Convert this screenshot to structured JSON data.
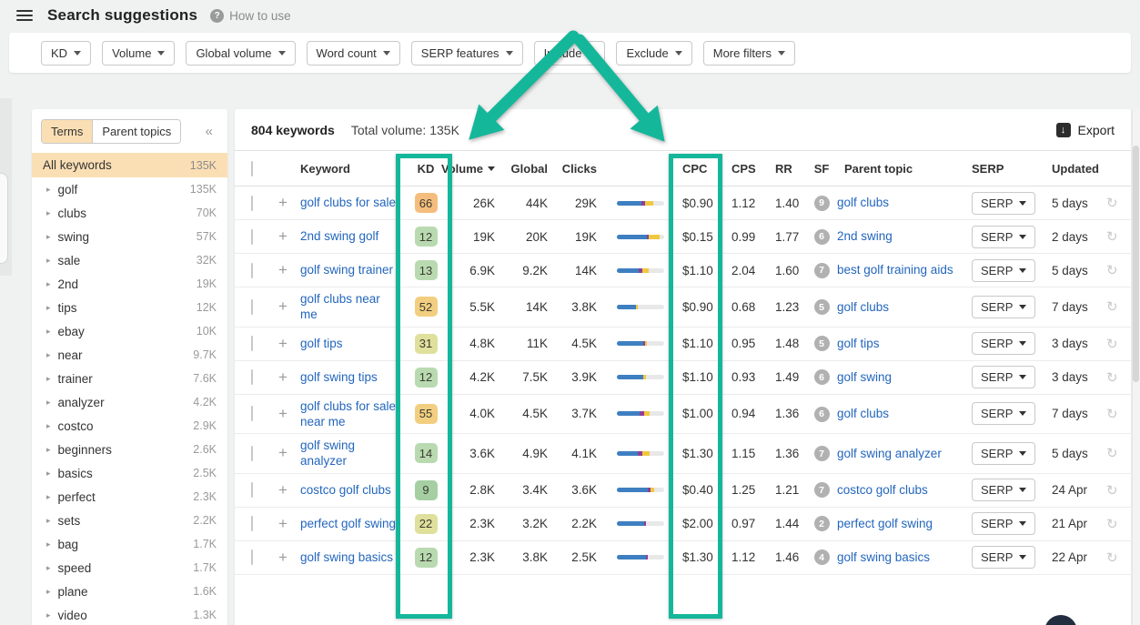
{
  "colors": {
    "accent_teal": "#15b79b",
    "active_peach": "#fbdfb4",
    "link_blue": "#2366bd",
    "bar_blue": "#3e7fc1",
    "bar_purple": "#8f3f97",
    "bar_yellow": "#f0c83f",
    "bar_track": "#e8e8e8"
  },
  "icons": {
    "menu": "hamburger",
    "help": "?",
    "caret": "caret-down",
    "collapse": "«",
    "tree": "▸",
    "download": "↓",
    "plus": "+",
    "refresh": "↻"
  },
  "header": {
    "title": "Search suggestions",
    "help_label": "How to use"
  },
  "filters": {
    "buttons": [
      "KD",
      "Volume",
      "Global volume",
      "Word count",
      "SERP features",
      "Include",
      "Exclude",
      "More filters"
    ]
  },
  "sidebar": {
    "tabs": [
      {
        "label": "Terms",
        "active": true
      },
      {
        "label": "Parent topics",
        "active": false
      }
    ],
    "all_row": {
      "label": "All keywords",
      "count": "135K"
    },
    "items": [
      {
        "label": "golf",
        "count": "135K"
      },
      {
        "label": "clubs",
        "count": "70K"
      },
      {
        "label": "swing",
        "count": "57K"
      },
      {
        "label": "sale",
        "count": "32K"
      },
      {
        "label": "2nd",
        "count": "19K"
      },
      {
        "label": "tips",
        "count": "12K"
      },
      {
        "label": "ebay",
        "count": "10K"
      },
      {
        "label": "near",
        "count": "9.7K"
      },
      {
        "label": "trainer",
        "count": "7.6K"
      },
      {
        "label": "analyzer",
        "count": "4.2K"
      },
      {
        "label": "costco",
        "count": "2.9K"
      },
      {
        "label": "beginners",
        "count": "2.6K"
      },
      {
        "label": "basics",
        "count": "2.5K"
      },
      {
        "label": "perfect",
        "count": "2.3K"
      },
      {
        "label": "sets",
        "count": "2.2K"
      },
      {
        "label": "bag",
        "count": "1.7K"
      },
      {
        "label": "speed",
        "count": "1.7K"
      },
      {
        "label": "plane",
        "count": "1.6K"
      },
      {
        "label": "video",
        "count": "1.3K"
      }
    ]
  },
  "table": {
    "summary": {
      "keywords": "804 keywords",
      "total_volume": "Total volume: 135K",
      "export_label": "Export"
    },
    "columns": [
      "Keyword",
      "KD",
      "Volume",
      "Global",
      "Clicks",
      "CPC",
      "CPS",
      "RR",
      "SF",
      "Parent topic",
      "SERP",
      "Updated"
    ],
    "serp_label": "SERP",
    "rows": [
      {
        "keyword": "golf clubs for sale",
        "kd": "66",
        "kd_color": "#f4bd7e",
        "volume": "26K",
        "global": "44K",
        "clicks": "29K",
        "bar": {
          "blue": 52,
          "purple": 7,
          "yellow": 18
        },
        "cpc": "$0.90",
        "cps": "1.12",
        "rr": "1.40",
        "sf": "9",
        "parent": "golf clubs",
        "updated": "5 days"
      },
      {
        "keyword": "2nd swing golf",
        "kd": "12",
        "kd_color": "#b9dab1",
        "volume": "19K",
        "global": "20K",
        "clicks": "19K",
        "bar": {
          "blue": 64,
          "purple": 3,
          "yellow": 24
        },
        "cpc": "$0.15",
        "cps": "0.99",
        "rr": "1.77",
        "sf": "6",
        "parent": "2nd swing",
        "updated": "2 days"
      },
      {
        "keyword": "golf swing trainer",
        "kd": "13",
        "kd_color": "#b9dab1",
        "volume": "6.9K",
        "global": "9.2K",
        "clicks": "14K",
        "bar": {
          "blue": 46,
          "purple": 8,
          "yellow": 14
        },
        "cpc": "$1.10",
        "cps": "2.04",
        "rr": "1.60",
        "sf": "7",
        "parent": "best golf training aids",
        "updated": "5 days"
      },
      {
        "keyword": "golf clubs near me",
        "kd": "52",
        "kd_color": "#f2cf80",
        "volume": "5.5K",
        "global": "14K",
        "clicks": "3.8K",
        "bar": {
          "blue": 40,
          "purple": 0,
          "yellow": 4
        },
        "cpc": "$0.90",
        "cps": "0.68",
        "rr": "1.23",
        "sf": "5",
        "parent": "golf clubs",
        "updated": "7 days"
      },
      {
        "keyword": "golf tips",
        "kd": "31",
        "kd_color": "#dfe09c",
        "volume": "4.8K",
        "global": "11K",
        "clicks": "4.5K",
        "bar": {
          "blue": 56,
          "purple": 4,
          "yellow": 4
        },
        "cpc": "$1.10",
        "cps": "0.95",
        "rr": "1.48",
        "sf": "5",
        "parent": "golf tips",
        "updated": "3 days"
      },
      {
        "keyword": "golf swing tips",
        "kd": "12",
        "kd_color": "#b9dab1",
        "volume": "4.2K",
        "global": "7.5K",
        "clicks": "3.9K",
        "bar": {
          "blue": 56,
          "purple": 0,
          "yellow": 6
        },
        "cpc": "$1.10",
        "cps": "0.93",
        "rr": "1.49",
        "sf": "6",
        "parent": "golf swing",
        "updated": "3 days"
      },
      {
        "keyword": "golf clubs for sale near me",
        "kd": "55",
        "kd_color": "#f2cf80",
        "volume": "4.0K",
        "global": "4.5K",
        "clicks": "3.7K",
        "bar": {
          "blue": 48,
          "purple": 9,
          "yellow": 12
        },
        "cpc": "$1.00",
        "cps": "0.94",
        "rr": "1.36",
        "sf": "6",
        "parent": "golf clubs",
        "updated": "7 days"
      },
      {
        "keyword": "golf swing analyzer",
        "kd": "14",
        "kd_color": "#b9dab1",
        "volume": "3.6K",
        "global": "4.9K",
        "clicks": "4.1K",
        "bar": {
          "blue": 44,
          "purple": 9,
          "yellow": 16
        },
        "cpc": "$1.30",
        "cps": "1.15",
        "rr": "1.36",
        "sf": "7",
        "parent": "golf swing analyzer",
        "updated": "5 days"
      },
      {
        "keyword": "costco golf clubs",
        "kd": "9",
        "kd_color": "#a5cfa3",
        "volume": "2.8K",
        "global": "3.4K",
        "clicks": "3.6K",
        "bar": {
          "blue": 66,
          "purple": 6,
          "yellow": 6
        },
        "cpc": "$0.40",
        "cps": "1.25",
        "rr": "1.21",
        "sf": "7",
        "parent": "costco golf clubs",
        "updated": "24 Apr"
      },
      {
        "keyword": "perfect golf swing",
        "kd": "22",
        "kd_color": "#dfe09c",
        "volume": "2.3K",
        "global": "3.2K",
        "clicks": "2.2K",
        "bar": {
          "blue": 58,
          "purple": 3,
          "yellow": 0
        },
        "cpc": "$2.00",
        "cps": "0.97",
        "rr": "1.44",
        "sf": "2",
        "parent": "perfect golf swing",
        "updated": "21 Apr"
      },
      {
        "keyword": "golf swing basics",
        "kd": "12",
        "kd_color": "#b9dab1",
        "volume": "2.3K",
        "global": "3.8K",
        "clicks": "2.5K",
        "bar": {
          "blue": 62,
          "purple": 4,
          "yellow": 0
        },
        "cpc": "$1.30",
        "cps": "1.12",
        "rr": "1.46",
        "sf": "4",
        "parent": "golf swing basics",
        "updated": "22 Apr"
      }
    ]
  }
}
